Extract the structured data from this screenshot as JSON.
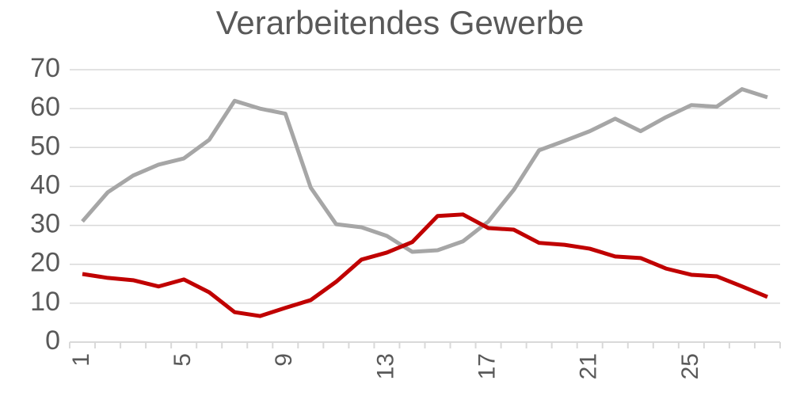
{
  "chart_data": {
    "type": "line",
    "title": "Verarbeitendes Gewerbe",
    "categories": [
      "1",
      null,
      null,
      null,
      "5",
      null,
      null,
      null,
      "9",
      null,
      null,
      null,
      "13",
      null,
      null,
      null,
      "17",
      null,
      null,
      null,
      "21",
      null,
      null,
      null,
      "25",
      null,
      null,
      null
    ],
    "series": [
      {
        "color": "#a6a6a6",
        "values": [
          31,
          38.5,
          42.8,
          45.6,
          47.2,
          52,
          62,
          60,
          58.7,
          39.7,
          30.3,
          29.5,
          27.3,
          23.2,
          23.6,
          25.9,
          31,
          39.1,
          49.3,
          51.7,
          54.2,
          57.4,
          54.2,
          57.8,
          60.9,
          60.5,
          65,
          62.9
        ]
      },
      {
        "color": "#c00000",
        "values": [
          17.5,
          16.5,
          15.9,
          14.3,
          16.1,
          12.8,
          7.7,
          6.7,
          8.8,
          10.8,
          15.5,
          21.2,
          23,
          25.7,
          32.4,
          32.8,
          29.3,
          28.9,
          25.5,
          25,
          24,
          22,
          21.6,
          18.9,
          17.3,
          16.9,
          14.3,
          11.6
        ]
      }
    ],
    "ylim": [
      0,
      70
    ],
    "yticks": [
      0,
      10,
      20,
      30,
      40,
      50,
      60,
      70
    ],
    "grid": true
  }
}
